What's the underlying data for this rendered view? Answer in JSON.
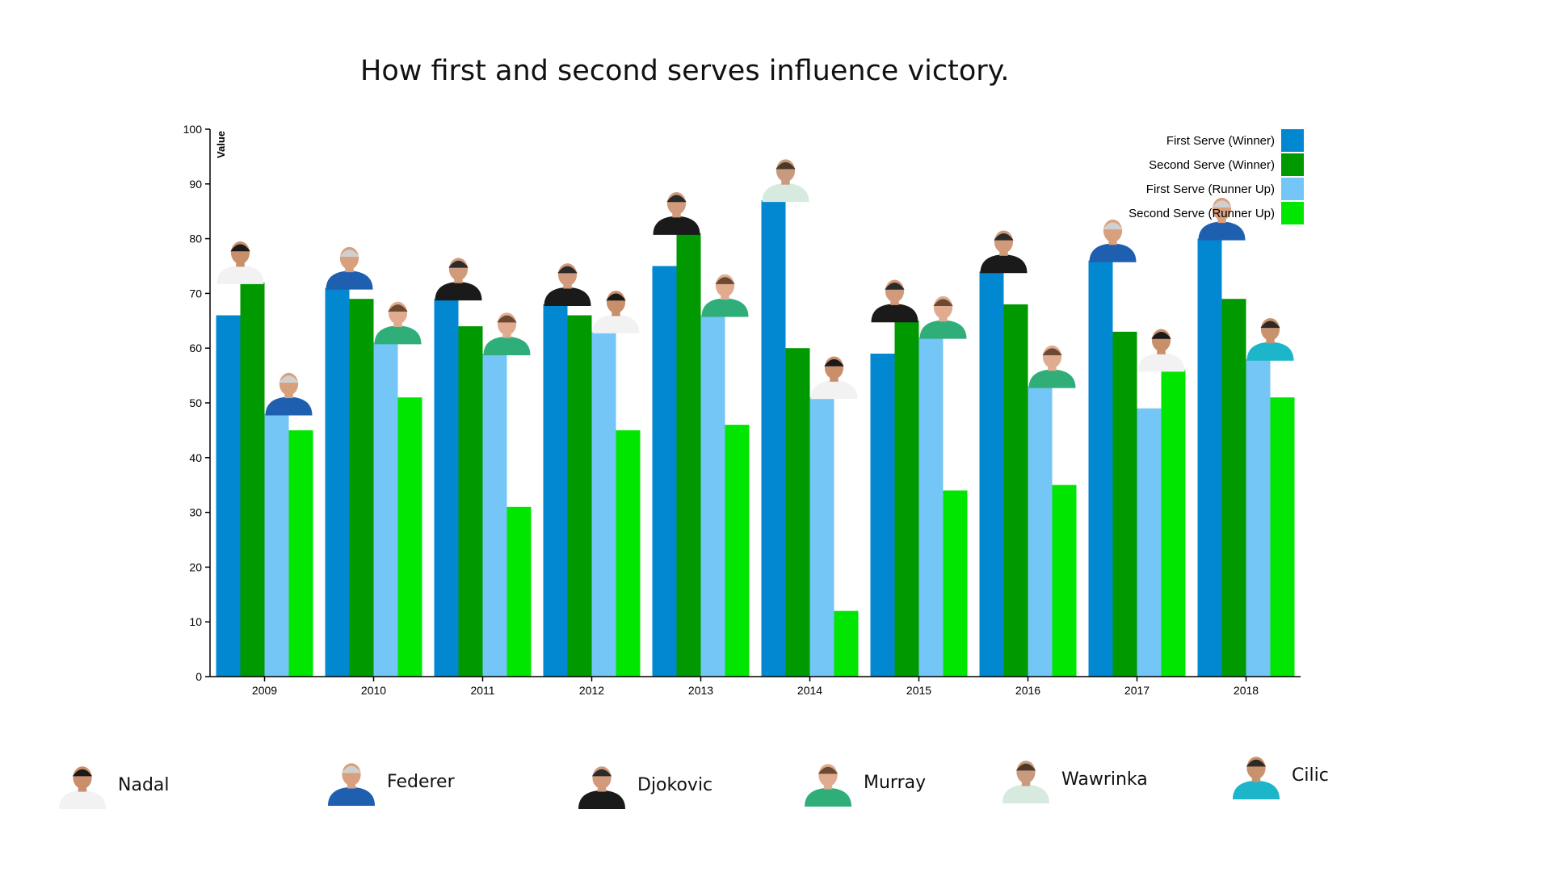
{
  "chart_data": {
    "type": "bar",
    "title": "How first and second serves influence victory.",
    "ylabel": "Value",
    "xlabel": "",
    "ylim": [
      0,
      100
    ],
    "yticks": [
      0,
      10,
      20,
      30,
      40,
      50,
      60,
      70,
      80,
      90,
      100
    ],
    "categories": [
      "2009",
      "2010",
      "2011",
      "2012",
      "2013",
      "2014",
      "2015",
      "2016",
      "2017",
      "2018"
    ],
    "series": [
      {
        "name": "First Serve (Winner)",
        "color": "#0288d1",
        "values": [
          66,
          71,
          69,
          68,
          75,
          87,
          59,
          74,
          76,
          80
        ]
      },
      {
        "name": "Second Serve (Winner)",
        "color": "#009900",
        "values": [
          72,
          69,
          64,
          66,
          81,
          60,
          65,
          68,
          63,
          69
        ]
      },
      {
        "name": "First Serve (Runner Up)",
        "color": "#73c6f5",
        "values": [
          48,
          61,
          59,
          63,
          66,
          51,
          62,
          53,
          49,
          58
        ]
      },
      {
        "name": "Second Serve (Runner Up)",
        "color": "#00e600",
        "values": [
          45,
          51,
          31,
          45,
          46,
          12,
          34,
          35,
          56,
          51
        ]
      }
    ],
    "winners": [
      "nadal",
      "federer",
      "djokovic",
      "djokovic",
      "djokovic",
      "wawrinka",
      "djokovic",
      "djokovic",
      "federer",
      "federer"
    ],
    "runners_up": [
      "federer",
      "murray",
      "murray",
      "nadal",
      "murray",
      "nadal",
      "murray",
      "murray",
      "nadal",
      "cilic"
    ],
    "legend_position": "top-right",
    "grid": false
  },
  "players": [
    {
      "id": "nadal",
      "name": "Nadal",
      "icon": "nadal-portrait-icon",
      "shirt": "#f2f2f2",
      "cap": "#1a1a1a",
      "skin": "#c98f6a"
    },
    {
      "id": "federer",
      "name": "Federer",
      "icon": "federer-portrait-icon",
      "shirt": "#1f5fb0",
      "cap": "#d0d0d0",
      "skin": "#d9a07e"
    },
    {
      "id": "djokovic",
      "name": "Djokovic",
      "icon": "djokovic-portrait-icon",
      "shirt": "#1a1a1a",
      "cap": "#2b2b2b",
      "skin": "#d19a7a"
    },
    {
      "id": "murray",
      "name": "Murray",
      "icon": "murray-portrait-icon",
      "shirt": "#2fae7a",
      "cap": "#6b4a33",
      "skin": "#e0ab8e"
    },
    {
      "id": "wawrinka",
      "name": "Wawrinka",
      "icon": "wawrinka-portrait-icon",
      "shirt": "#d7eadf",
      "cap": "#4a3a2c",
      "skin": "#c99b7e"
    },
    {
      "id": "cilic",
      "name": "Cilic",
      "icon": "cilic-portrait-icon",
      "shirt": "#1cb5c9",
      "cap": "#2f2a25",
      "skin": "#c9926f"
    }
  ]
}
